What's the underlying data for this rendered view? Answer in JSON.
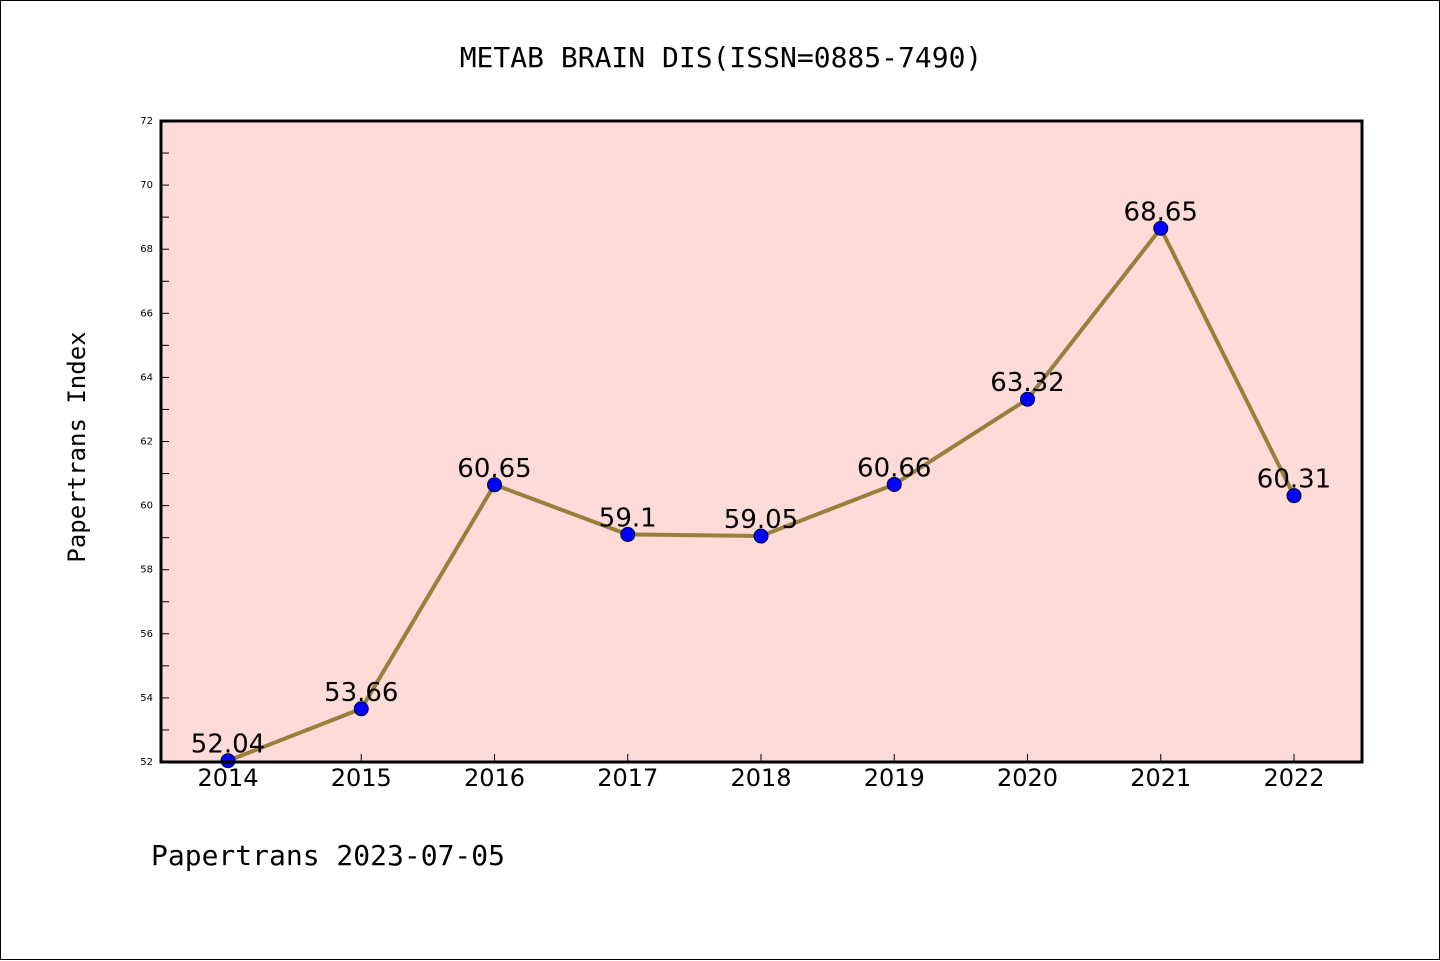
{
  "chart_data": {
    "type": "line",
    "title": "METAB BRAIN DIS(ISSN=0885-7490)",
    "ylabel": "Papertrans Index",
    "xlabel": "",
    "categories": [
      "2014",
      "2015",
      "2016",
      "2017",
      "2018",
      "2019",
      "2020",
      "2021",
      "2022"
    ],
    "values": [
      52.04,
      53.66,
      60.65,
      59.1,
      59.05,
      60.66,
      63.32,
      68.65,
      60.31
    ],
    "data_labels": [
      "52.04",
      "53.66",
      "60.65",
      "59.1",
      "59.05",
      "60.66",
      "63.32",
      "68.65",
      "60.31"
    ],
    "ylim": [
      52,
      72
    ],
    "yticks": [
      "52",
      "54",
      "56",
      "58",
      "60",
      "62",
      "64",
      "66",
      "68",
      "70",
      "72"
    ],
    "grid": false,
    "colors": {
      "plot_background": "#fddbd8",
      "line": "#9a7f3c",
      "marker": "#0000ff"
    }
  },
  "footer": {
    "text": "Papertrans 2023-07-05"
  }
}
